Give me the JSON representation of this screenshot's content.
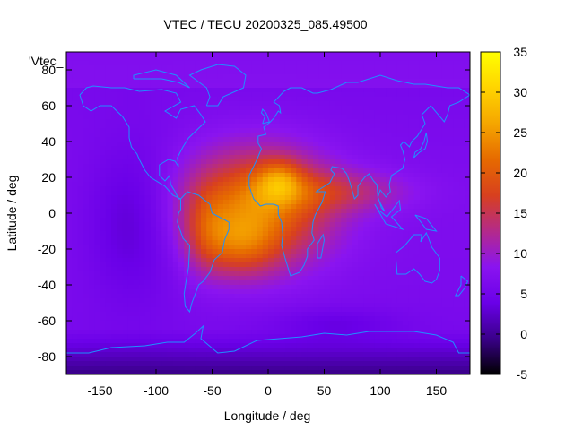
{
  "chart_data": {
    "type": "heatmap",
    "title": "VTEC / TECU 20200325_085.49500",
    "xlabel": "Longitude / deg",
    "ylabel": "Latitude / deg",
    "corner_label": "'Vtec_",
    "xlim": [
      -180,
      180
    ],
    "ylim": [
      -90,
      90
    ],
    "x_ticks": [
      -150,
      -100,
      -50,
      0,
      50,
      100,
      150
    ],
    "y_ticks": [
      -80,
      -60,
      -40,
      -20,
      0,
      20,
      40,
      60,
      80
    ],
    "colorbar": {
      "range": [
        -5,
        35
      ],
      "ticks": [
        -5,
        0,
        5,
        10,
        15,
        20,
        25,
        30,
        35
      ],
      "palette": [
        "#000000",
        "#3a008a",
        "#6a00e8",
        "#8a14f0",
        "#b42a8a",
        "#d8401e",
        "#e66a00",
        "#f5a600",
        "#ffd400",
        "#ffff00"
      ]
    },
    "grid": false,
    "overlay": "coastlines",
    "colors": {
      "coastline": "#1e90ff",
      "axis": "#000000"
    }
  }
}
